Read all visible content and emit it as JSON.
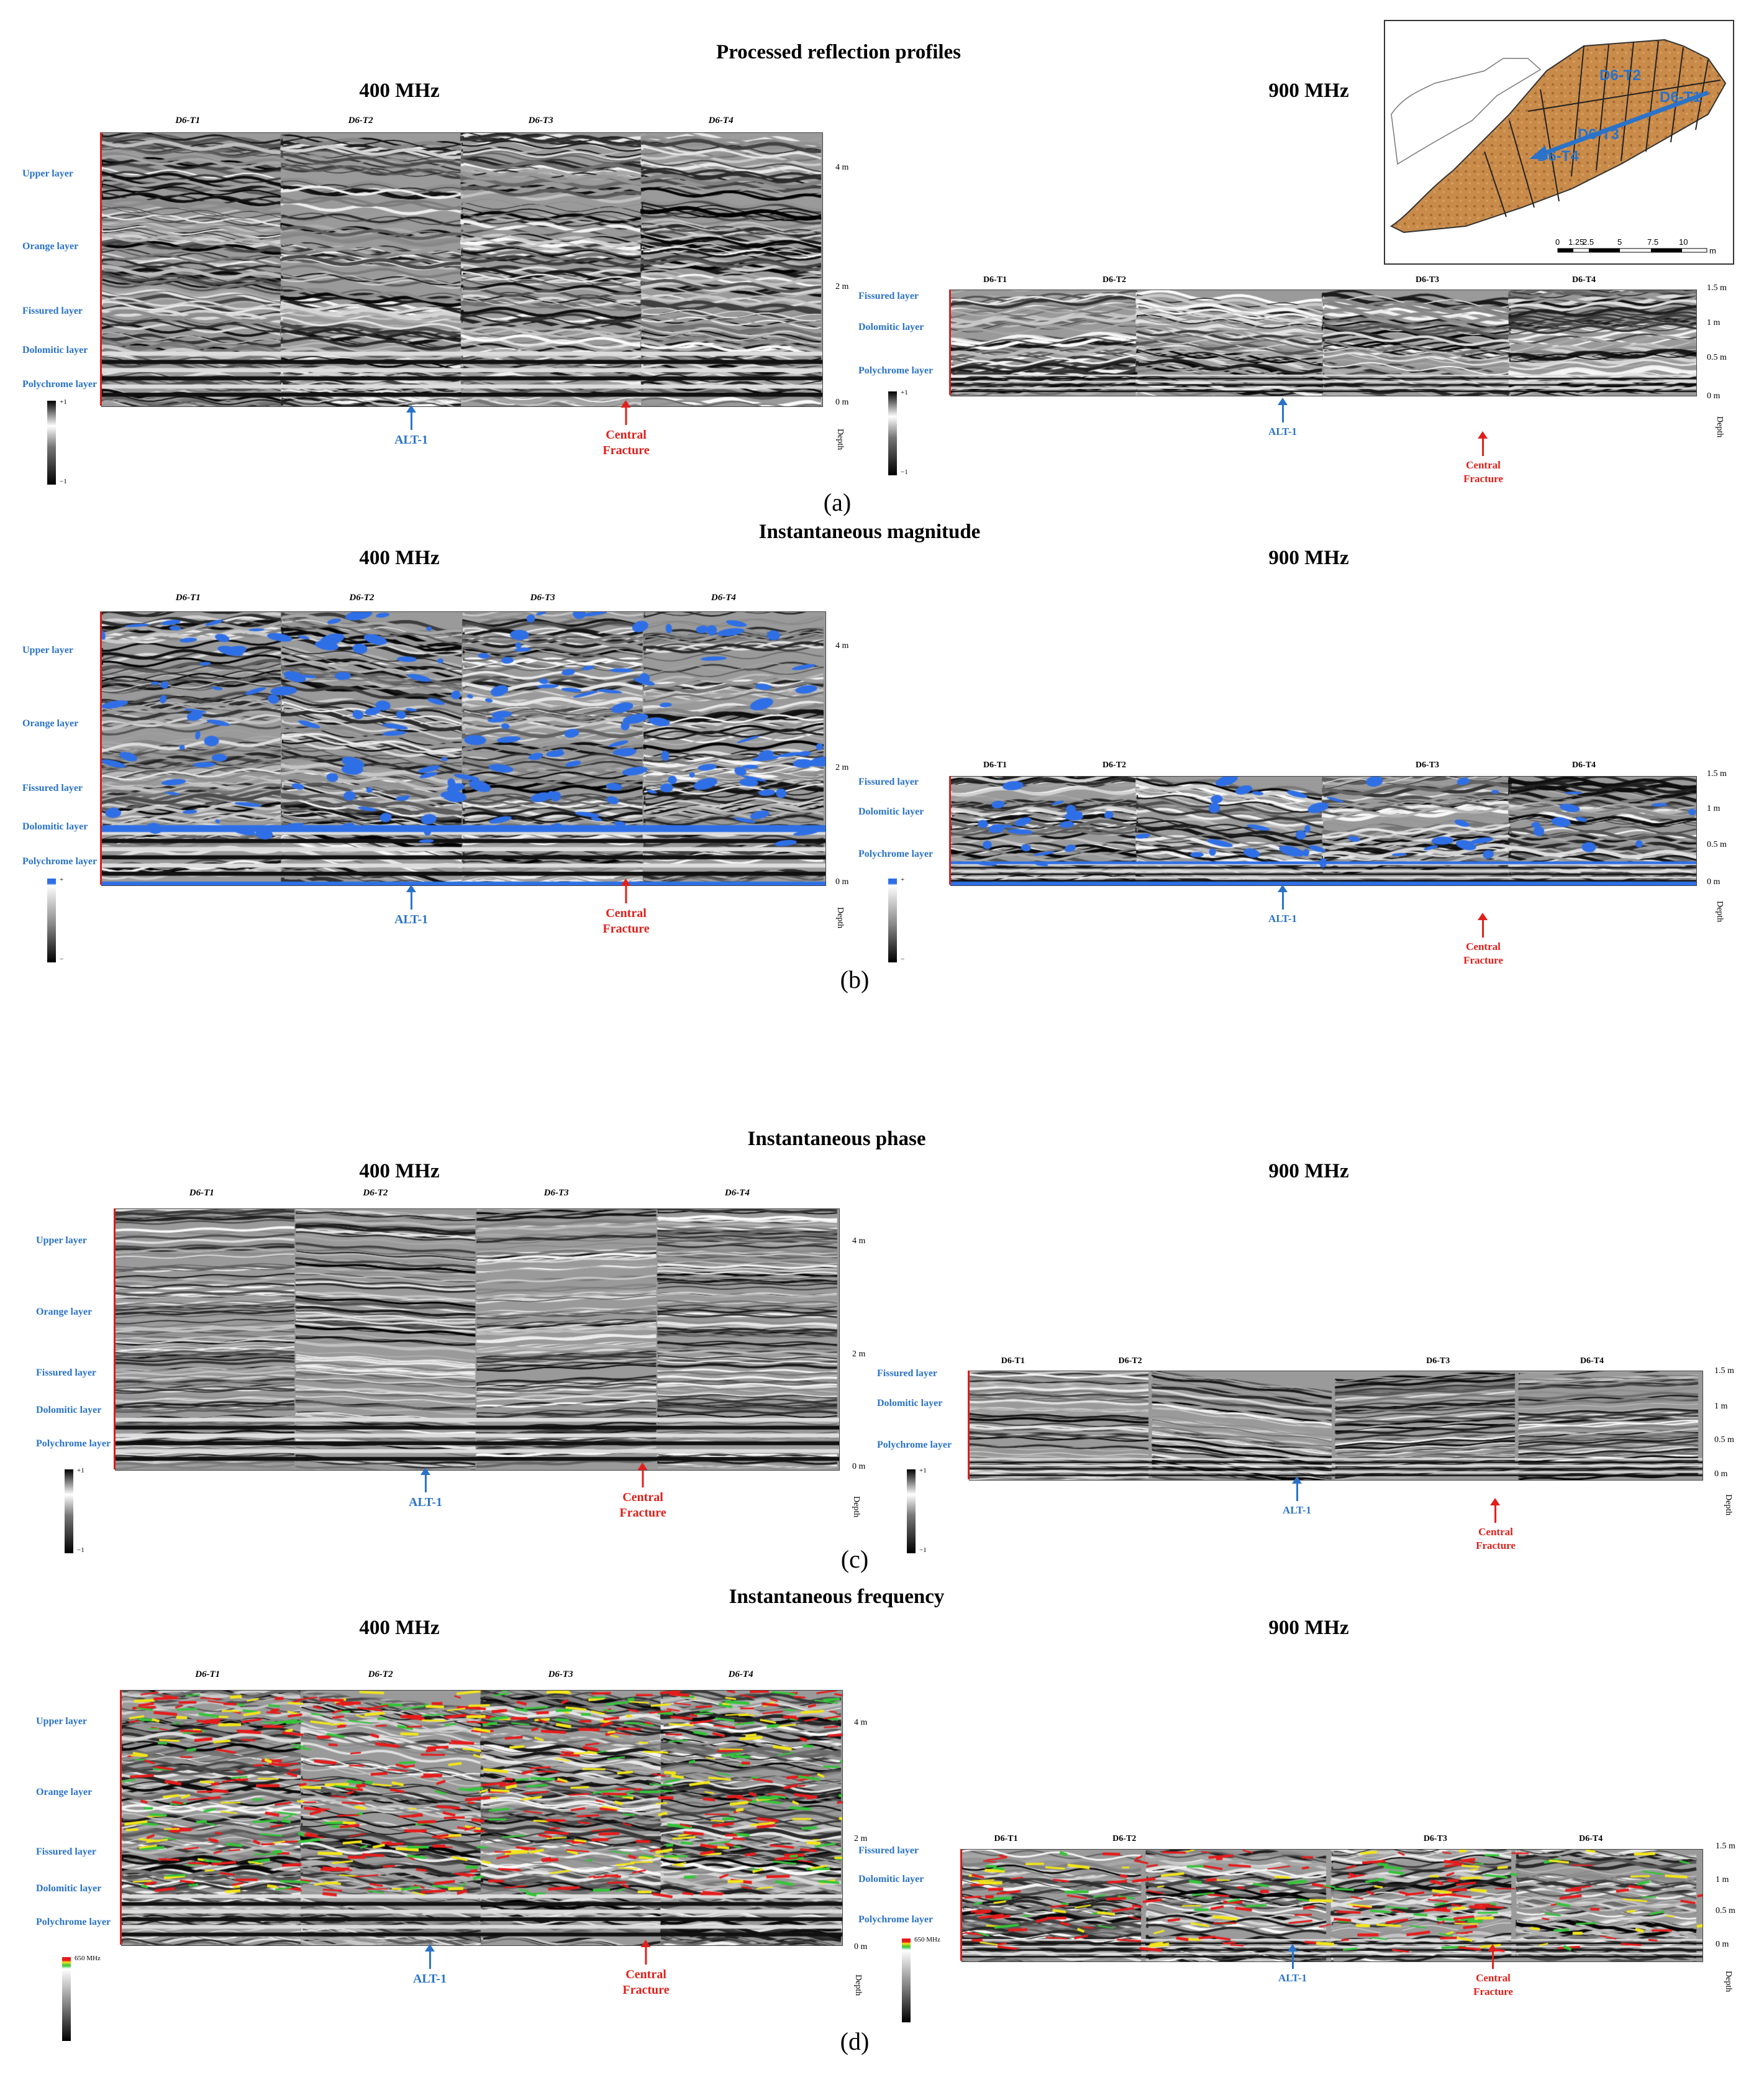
{
  "panels": [
    {
      "id": "a",
      "title": "Processed reflection profiles",
      "caption": "(a)",
      "scalebar_top": "+1",
      "scalebar_bottom": "−1",
      "style": "gray"
    },
    {
      "id": "b",
      "title": "Instantaneous magnitude",
      "caption": "(b)",
      "scalebar_top": "+",
      "scalebar_bottom": "−",
      "style": "mag"
    },
    {
      "id": "c",
      "title": "Instantaneous phase",
      "caption": "(c)",
      "scalebar_top": "+1",
      "scalebar_bottom": "−1",
      "style": "phase"
    },
    {
      "id": "d",
      "title": "Instantaneous frequency",
      "caption": "(d)",
      "scalebar_top": "650 MHz",
      "scalebar_bottom": "",
      "style": "freq"
    }
  ],
  "freq_400": "400 MHz",
  "freq_900": "900 MHz",
  "layers": [
    "Upper layer",
    "Orange layer",
    "Fissured layer",
    "Dolomitic layer",
    "Polychrome layer"
  ],
  "layers_900": [
    "Fissured layer",
    "Dolomitic layer",
    "Polychrome layer"
  ],
  "transects": [
    "D6-T1",
    "D6-T2",
    "D6-T3",
    "D6-T4"
  ],
  "depth_400": [
    "4 m",
    "2 m",
    "0 m"
  ],
  "depth_900": [
    "1.5 m",
    "1 m",
    "0.5 m",
    "0 m"
  ],
  "depth_word": "Depth",
  "alt_label": "ALT-1",
  "fracture_label_1": "Central",
  "fracture_label_2": "Fracture",
  "map": {
    "labels": [
      "D6-T2",
      "D6-T1",
      "D6-T3",
      "D6-T4"
    ],
    "scale_ticks": [
      "0",
      "1.25",
      "2.5",
      "5",
      "7.5",
      "10"
    ],
    "scale_unit": "m"
  },
  "colors": {
    "blue": "#2a73c9",
    "red": "#e0201b"
  }
}
